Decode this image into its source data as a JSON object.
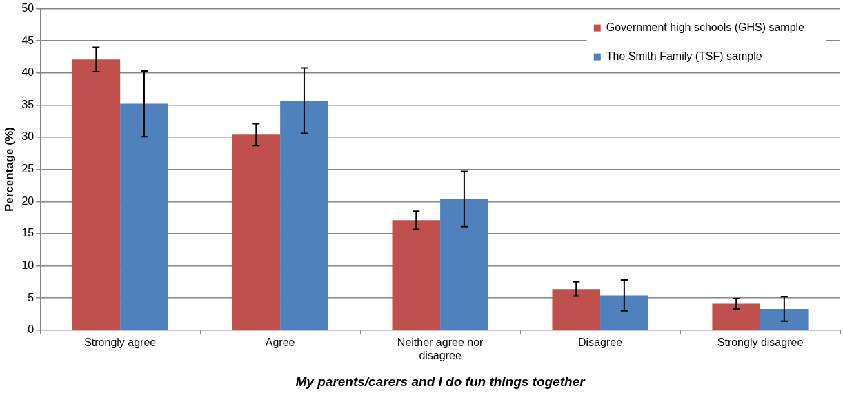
{
  "chart_data": {
    "type": "bar",
    "categories": [
      "Strongly agree",
      "Agree",
      "Neither agree nor disagree",
      "Disagree",
      "Strongly disagree"
    ],
    "series": [
      {
        "name": "Government high schools (GHS) sample",
        "color": "#c0504d",
        "values": [
          42.1,
          30.4,
          17.1,
          6.4,
          4.1
        ],
        "errors": [
          1.9,
          1.7,
          1.4,
          1.1,
          0.8
        ]
      },
      {
        "name": "The Smith Family (TSF) sample",
        "color": "#4f81bd",
        "values": [
          35.2,
          35.7,
          20.4,
          5.4,
          3.3
        ],
        "errors": [
          5.1,
          5.1,
          4.3,
          2.4,
          1.9
        ]
      }
    ],
    "xlabel": "My parents/carers and I do fun things together",
    "ylabel": "Percentage (%)",
    "ylim": [
      0,
      50
    ],
    "yticks": [
      0,
      5,
      10,
      15,
      20,
      25,
      30,
      35,
      40,
      45,
      50
    ],
    "grid": "y",
    "legend": "top right"
  }
}
